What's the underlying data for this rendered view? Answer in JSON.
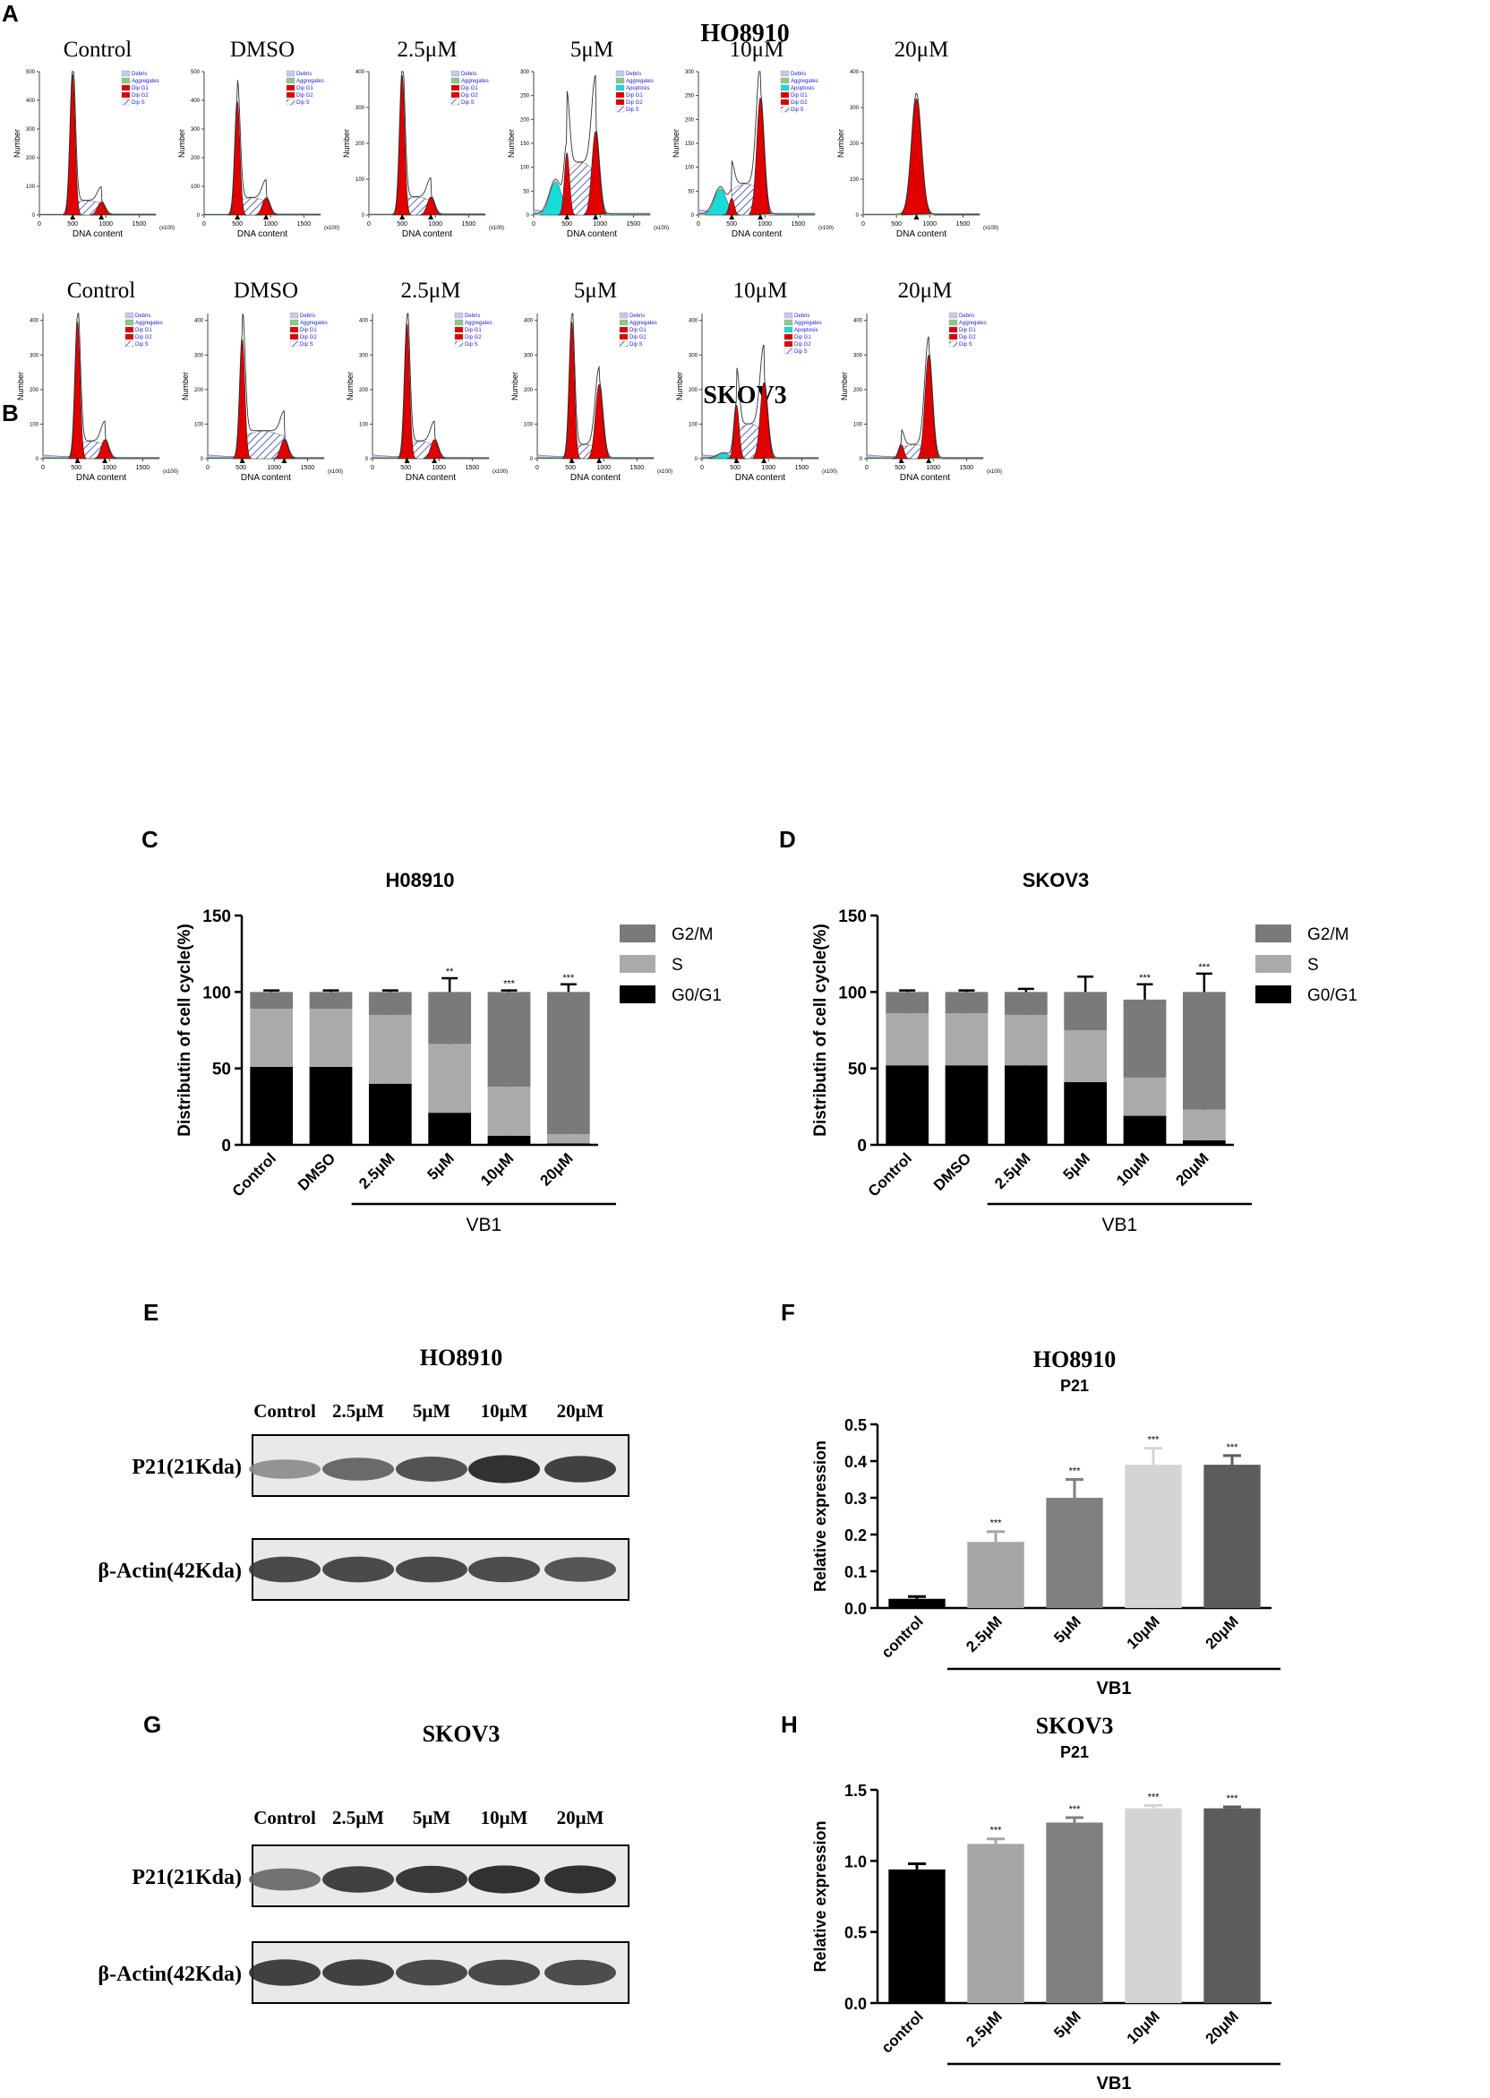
{
  "panel_labels": {
    "a": "A",
    "b": "B",
    "c": "C",
    "d": "D",
    "e": "E",
    "f": "F",
    "g": "G",
    "h": "H"
  },
  "colors": {
    "g1": "#e00000",
    "g2": "#e00000",
    "s_hatch": "#3344aa",
    "debris": "#c8c8ee",
    "apoptosis": "#19dada",
    "aggregates": "#8bc98b",
    "bar_dark": "#555555",
    "bar_mid": "#8c8c8c",
    "bar_light": "#aaaaaa",
    "bar_black": "#000000"
  },
  "flow_common": {
    "xlabel": "DNA content",
    "ylabel": "Number",
    "x_unit": "(x100)",
    "xticks": [
      "0",
      "500",
      "1000",
      "1500"
    ]
  },
  "flow_ho8910": {
    "title": "HO8910",
    "panels": [
      {
        "label": "Control",
        "legend": [
          "Debris",
          "Aggregates",
          "Dip G1",
          "Dip G2",
          "Dip S"
        ],
        "yticks": [
          "0",
          "100",
          "200",
          "300",
          "400",
          "500"
        ],
        "ymax": 500,
        "g1": 490,
        "g2": 45,
        "s": 50,
        "apop": 0
      },
      {
        "label": "DMSO",
        "legend": [
          "Debris",
          "Aggregates",
          "Dip G1",
          "Dip G2",
          "Dip S"
        ],
        "yticks": [
          "0",
          "100",
          "200",
          "300",
          "400",
          "500"
        ],
        "ymax": 500,
        "g1": 395,
        "g2": 60,
        "s": 60,
        "apop": 0
      },
      {
        "label": "2.5μM",
        "legend": [
          "Debris",
          "Aggregates",
          "Dip G1",
          "Dip G2",
          "Dip S"
        ],
        "yticks": [
          "0",
          "100",
          "200",
          "300",
          "400"
        ],
        "ymax": 400,
        "g1": 390,
        "g2": 50,
        "s": 50,
        "apop": 0
      },
      {
        "label": "5μM",
        "legend": [
          "Debris",
          "Aggregates",
          "Apoptosis",
          "Dip G1",
          "Dip G2",
          "Dip S"
        ],
        "yticks": [
          "0",
          "50",
          "100",
          "150",
          "200",
          "250",
          "300"
        ],
        "ymax": 300,
        "g1": 130,
        "g2": 175,
        "s": 110,
        "apop": 70
      },
      {
        "label": "10μM",
        "legend": [
          "Debris",
          "Aggregates",
          "Apoptosis",
          "Dip G1",
          "Dip G2",
          "Dip S"
        ],
        "yticks": [
          "0",
          "50",
          "100",
          "150",
          "200",
          "250",
          "300"
        ],
        "ymax": 300,
        "g1": 35,
        "g2": 245,
        "s": 65,
        "apop": 55
      },
      {
        "label": "20μM",
        "legend": [],
        "yticks": [
          "0",
          "100",
          "200",
          "300",
          "400"
        ],
        "ymax": 400,
        "g1": 0,
        "g2": 325,
        "s": 0,
        "apop": 0
      }
    ]
  },
  "flow_skov3": {
    "title": "SKOV3",
    "panels": [
      {
        "label": "Control",
        "legend": [
          "Debris",
          "Aggregates",
          "Dip G1",
          "Dip G2",
          "Dip S"
        ],
        "yticks": [
          "0",
          "100",
          "200",
          "300",
          "400"
        ],
        "ymax": 420,
        "g1": 395,
        "g2": 55,
        "s": 50,
        "apop": 0
      },
      {
        "label": "DMSO",
        "legend": [
          "Debris",
          "Aggregates",
          "Dip G1",
          "Dip G2",
          "Dip S"
        ],
        "yticks": [
          "0",
          "100",
          "200",
          "300",
          "400"
        ],
        "ymax": 420,
        "g1": 345,
        "g2": 55,
        "s": 80,
        "apop": 0
      },
      {
        "label": "2.5μM",
        "legend": [
          "Debris",
          "Aggregates",
          "Dip G1",
          "Dip G2",
          "Dip S"
        ],
        "yticks": [
          "0",
          "100",
          "200",
          "300",
          "400"
        ],
        "ymax": 420,
        "g1": 390,
        "g2": 55,
        "s": 50,
        "apop": 0
      },
      {
        "label": "5μM",
        "legend": [
          "Debris",
          "Aggregates",
          "Dip G1",
          "Dip G2",
          "Dip S"
        ],
        "yticks": [
          "0",
          "100",
          "200",
          "300",
          "400"
        ],
        "ymax": 420,
        "g1": 395,
        "g2": 215,
        "s": 40,
        "apop": 0
      },
      {
        "label": "10μM",
        "legend": [
          "Debris",
          "Aggregates",
          "Apoptosis",
          "Dip G1",
          "Dip G2",
          "Dip S"
        ],
        "yticks": [
          "0",
          "100",
          "200",
          "300",
          "400"
        ],
        "ymax": 420,
        "g1": 155,
        "g2": 220,
        "s": 100,
        "apop": 15
      },
      {
        "label": "20μM",
        "legend": [
          "Debris",
          "Aggregates",
          "Dip G1",
          "Dip G2",
          "Dip S"
        ],
        "yticks": [
          "0",
          "100",
          "200",
          "300",
          "400"
        ],
        "ymax": 420,
        "g1": 40,
        "g2": 300,
        "s": 40,
        "apop": 0
      }
    ]
  },
  "chart_data": [
    {
      "id": "C",
      "type": "bar",
      "stacked": true,
      "title": "H08910",
      "ylabel": "Distributin of cell cycle(%)",
      "ylim": [
        0,
        150
      ],
      "yticks": [
        "0",
        "50",
        "100",
        "150"
      ],
      "categories": [
        "Control",
        "DMSO",
        "2.5μM",
        "5μM",
        "10μM",
        "20μM"
      ],
      "group_label": "VB1",
      "series": [
        {
          "name": "G0/G1",
          "values": [
            51,
            51,
            40,
            21,
            6,
            1
          ],
          "err": [
            5,
            5,
            7,
            8,
            1,
            1
          ]
        },
        {
          "name": "S",
          "values": [
            38,
            38,
            45,
            45,
            32,
            6
          ],
          "err": [
            4,
            4,
            4,
            2,
            1,
            6
          ]
        },
        {
          "name": "G2/M",
          "values": [
            11,
            11,
            15,
            34,
            62,
            93
          ],
          "err": [
            1,
            1,
            1,
            9,
            1,
            5
          ]
        }
      ],
      "significance": [
        "",
        "",
        "",
        "**",
        "***",
        "***"
      ]
    },
    {
      "id": "D",
      "type": "bar",
      "stacked": true,
      "title": "SKOV3",
      "ylabel": "Distributin of cell cycle(%)",
      "ylim": [
        0,
        150
      ],
      "yticks": [
        "0",
        "50",
        "100",
        "150"
      ],
      "categories": [
        "Control",
        "DMSO",
        "2.5μM",
        "5μM",
        "10μM",
        "20μM"
      ],
      "group_label": "VB1",
      "series": [
        {
          "name": "G0/G1",
          "values": [
            52,
            52,
            52,
            41,
            19,
            3
          ],
          "err": [
            11,
            11,
            5,
            3,
            3,
            3
          ]
        },
        {
          "name": "S",
          "values": [
            34,
            34,
            33,
            34,
            25,
            20
          ],
          "err": [
            11,
            11,
            6,
            8,
            4,
            9
          ]
        },
        {
          "name": "G2/M",
          "values": [
            14,
            14,
            15,
            25,
            51,
            77
          ],
          "err": [
            1,
            1,
            2,
            10,
            10,
            12
          ]
        }
      ],
      "significance": [
        "",
        "",
        "",
        "",
        "***",
        "***"
      ]
    },
    {
      "id": "F",
      "type": "bar",
      "title": "HO8910",
      "subtitle": "P21",
      "ylabel": "Relative expression",
      "ylim": [
        0,
        0.5
      ],
      "yticks": [
        "0.0",
        "0.1",
        "0.2",
        "0.3",
        "0.4",
        "0.5"
      ],
      "categories": [
        "control",
        "2.5μM",
        "5μM",
        "10μM",
        "20μM"
      ],
      "group_label": "VB1",
      "values": [
        0.025,
        0.18,
        0.3,
        0.39,
        0.39
      ],
      "err": [
        0.006,
        0.028,
        0.05,
        0.045,
        0.025
      ],
      "significance": [
        "",
        "***",
        "***",
        "***",
        "***"
      ],
      "bar_colors": [
        "#000000",
        "#a6a6a6",
        "#808080",
        "#d4d4d4",
        "#5c5c5c"
      ]
    },
    {
      "id": "H",
      "type": "bar",
      "title": "SKOV3",
      "subtitle": "P21",
      "ylabel": "Relative expression",
      "ylim": [
        0,
        1.5
      ],
      "yticks": [
        "0.0",
        "0.5",
        "1.0",
        "1.5"
      ],
      "categories": [
        "control",
        "2.5μM",
        "5μM",
        "10μM",
        "20μM"
      ],
      "group_label": "VB1",
      "values": [
        0.94,
        1.12,
        1.27,
        1.37,
        1.37
      ],
      "err": [
        0.04,
        0.035,
        0.035,
        0.02,
        0.01
      ],
      "significance": [
        "",
        "***",
        "***",
        "***",
        "***"
      ],
      "bar_colors": [
        "#000000",
        "#a6a6a6",
        "#808080",
        "#d4d4d4",
        "#5c5c5c"
      ]
    }
  ],
  "western_e": {
    "title": "HO8910",
    "lanes": [
      "Control",
      "2.5μM",
      "5μM",
      "10μM",
      "20μM"
    ],
    "rows": [
      "P21(21Kda)",
      "β-Actin(42Kda)"
    ],
    "p21_intensity": [
      0.35,
      0.6,
      0.75,
      0.95,
      0.85
    ],
    "actin_intensity": [
      0.8,
      0.8,
      0.8,
      0.78,
      0.72
    ]
  },
  "western_g": {
    "title": "SKOV3",
    "lanes": [
      "Control",
      "2.5μM",
      "5μM",
      "10μM",
      "20μM"
    ],
    "rows": [
      "P21(21Kda)",
      "β-Actin(42Kda)"
    ],
    "p21_intensity": [
      0.55,
      0.85,
      0.9,
      0.95,
      0.95
    ],
    "actin_intensity": [
      0.85,
      0.85,
      0.8,
      0.8,
      0.78
    ]
  }
}
